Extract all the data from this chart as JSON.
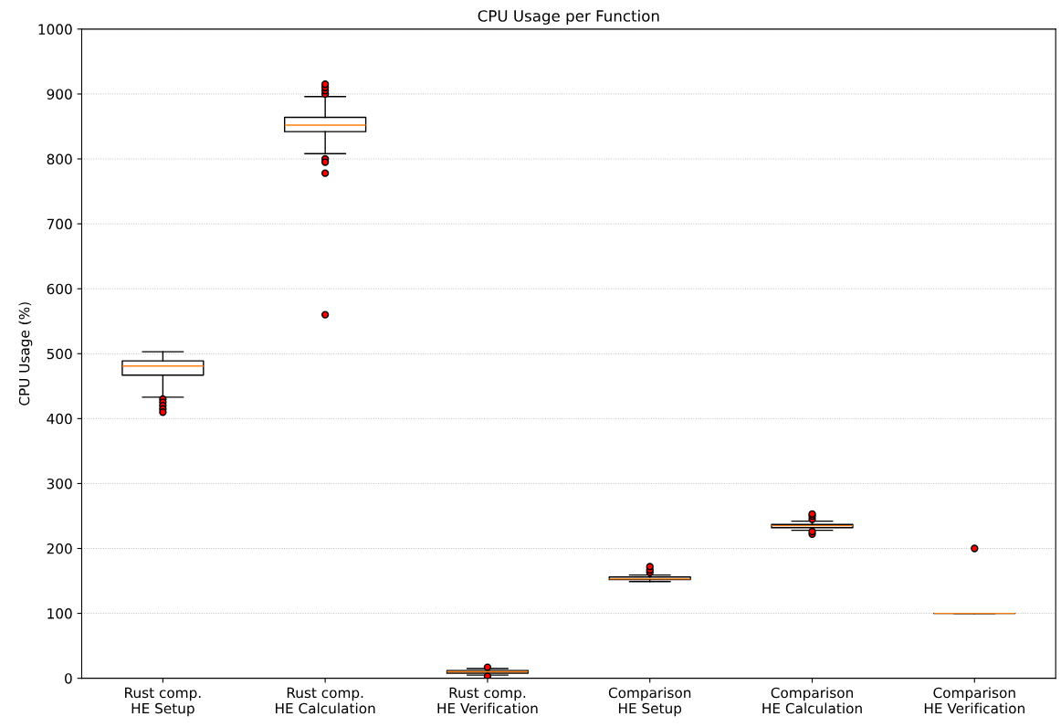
{
  "chart_data": {
    "type": "box",
    "title": "CPU Usage per Function",
    "ylabel": "CPU Usage (%)",
    "categories": [
      "Rust comp.\nHE Setup",
      "Rust comp.\nHE Calculation",
      "Rust comp.\nHE Verification",
      "Comparison\nHE Setup",
      "Comparison\nHE Calculation",
      "Comparison\nHE Verification"
    ],
    "boxes": [
      {
        "low": 433,
        "q1": 467,
        "median": 481,
        "q3": 489,
        "high": 503,
        "outliers": [
          430,
          425,
          420,
          415,
          410
        ]
      },
      {
        "low": 808,
        "q1": 842,
        "median": 852,
        "q3": 864,
        "high": 896,
        "outliers": [
          900,
          905,
          910,
          915,
          800,
          795,
          778,
          560
        ]
      },
      {
        "low": 5,
        "q1": 8,
        "median": 10,
        "q3": 12,
        "high": 15,
        "outliers": [
          17,
          3
        ]
      },
      {
        "low": 149,
        "q1": 152,
        "median": 153,
        "q3": 156,
        "high": 159,
        "outliers": [
          163,
          167,
          172
        ]
      },
      {
        "low": 228,
        "q1": 232,
        "median": 235,
        "q3": 237,
        "high": 242,
        "outliers": [
          222,
          226,
          245,
          250,
          253
        ]
      },
      {
        "low": 100,
        "q1": 100,
        "median": 100,
        "q3": 100,
        "high": 100,
        "outliers": [
          200
        ]
      }
    ],
    "color": "#000000",
    "ylim": [
      0,
      1000
    ],
    "yticks": [
      0,
      100,
      200,
      300,
      400,
      500,
      600,
      700,
      800,
      900,
      1000
    ],
    "grid": "y"
  }
}
